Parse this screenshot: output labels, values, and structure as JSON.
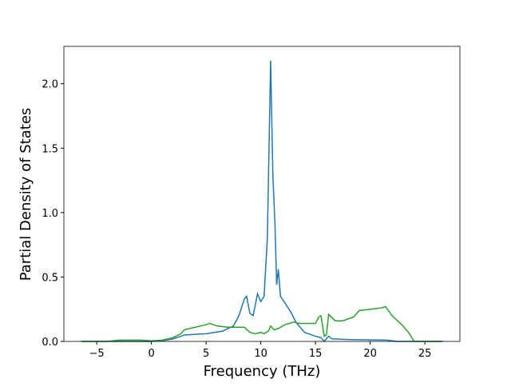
{
  "chart_data": {
    "type": "line",
    "xlabel": "Frequency (THz)",
    "ylabel": "Partial Density of States",
    "xlim": [
      -8.0,
      28.2
    ],
    "ylim": [
      0,
      2.29
    ],
    "xticks": [
      {
        "value": -5,
        "label": "−5"
      },
      0,
      5,
      10,
      15,
      20,
      25
    ],
    "yticks": [
      {
        "value": 0,
        "label": "0.0"
      },
      0.5,
      {
        "value": 1,
        "label": "1.0"
      },
      1.5,
      {
        "value": 2,
        "label": "2.0"
      }
    ],
    "grid": false,
    "series": [
      {
        "color": "#1f77b4",
        "x": [
          -6.4,
          0,
          1,
          2,
          3,
          5,
          6.5,
          7.5,
          8,
          8.5,
          8.7,
          9,
          9.3,
          9.7,
          10,
          10.3,
          10.6,
          10.9,
          11.1,
          11.3,
          11.45,
          11.6,
          11.8,
          12.2,
          12.8,
          13.2,
          14,
          15,
          15.5,
          15.8,
          16.2,
          16.5,
          18,
          21.5,
          22.5,
          26.6
        ],
        "values": [
          0,
          0,
          0.005,
          0.02,
          0.05,
          0.06,
          0.08,
          0.12,
          0.2,
          0.33,
          0.35,
          0.22,
          0.2,
          0.37,
          0.31,
          0.35,
          0.8,
          2.18,
          1.3,
          0.9,
          0.44,
          0.56,
          0.35,
          0.3,
          0.22,
          0.15,
          0.07,
          0.04,
          0.03,
          0,
          0.04,
          0.02,
          0.015,
          0.01,
          0,
          0
        ]
      },
      {
        "color": "#2ca02c",
        "x": [
          -6.4,
          -4,
          -3,
          -1,
          0,
          1,
          2,
          2.7,
          3,
          4,
          5,
          5.3,
          6,
          7,
          8.5,
          9,
          9.5,
          10,
          10.3,
          10.7,
          10.9,
          11.2,
          11.6,
          12.2,
          13,
          13.5,
          14.5,
          15,
          15.3,
          15.5,
          15.8,
          16,
          16.2,
          16.8,
          17.5,
          18.5,
          19,
          20,
          21,
          21.4,
          22,
          23,
          23.5,
          23.8,
          24,
          26.6
        ],
        "values": [
          0,
          0,
          0.01,
          0.01,
          0.005,
          0.01,
          0.03,
          0.06,
          0.09,
          0.11,
          0.13,
          0.14,
          0.12,
          0.11,
          0.11,
          0.07,
          0.06,
          0.07,
          0.06,
          0.08,
          0.12,
          0.09,
          0.1,
          0.13,
          0.15,
          0.14,
          0.14,
          0.14,
          0.19,
          0.2,
          0.04,
          0.05,
          0.21,
          0.16,
          0.16,
          0.19,
          0.24,
          0.25,
          0.26,
          0.27,
          0.2,
          0.12,
          0.07,
          0.03,
          0,
          0
        ]
      }
    ]
  }
}
